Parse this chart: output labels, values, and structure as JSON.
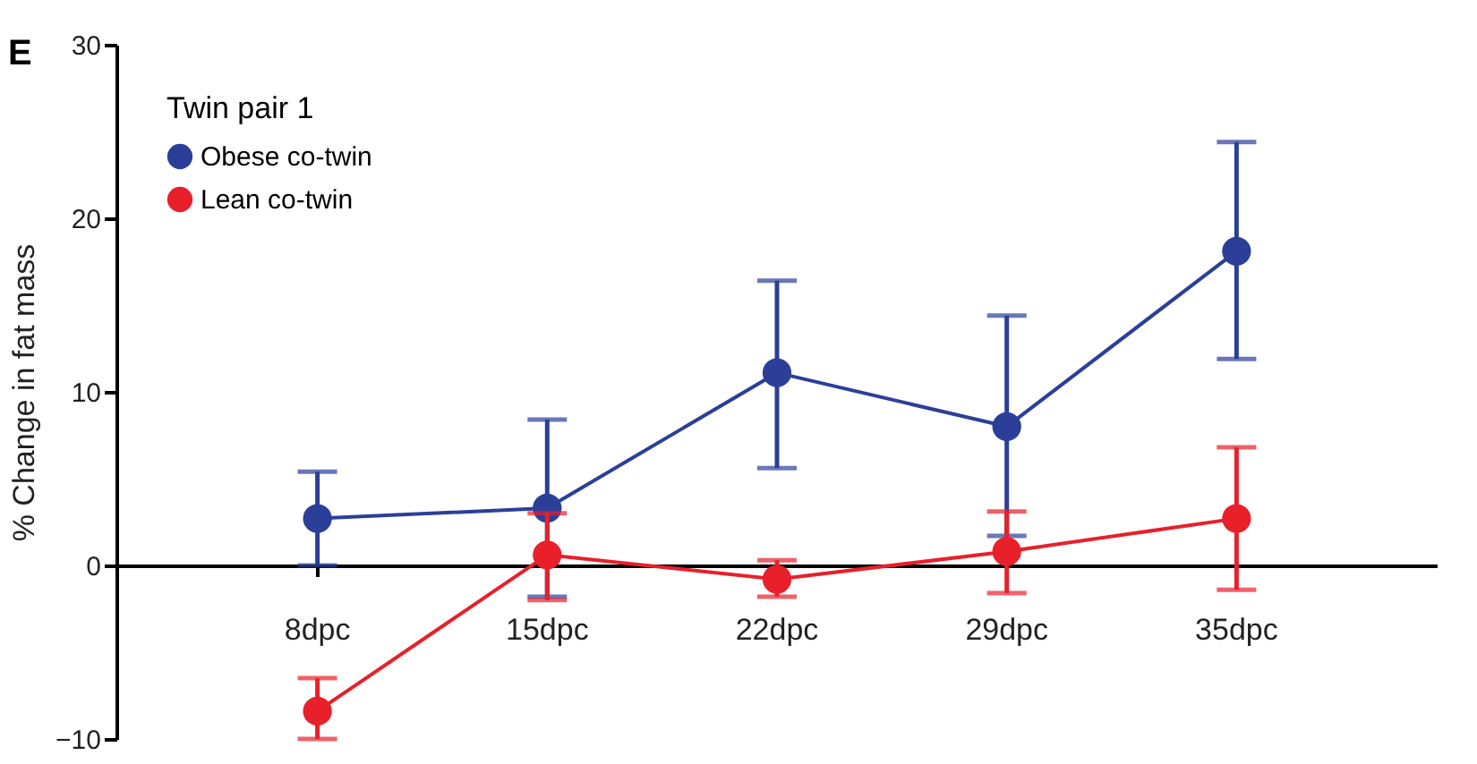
{
  "chart_data": {
    "type": "line",
    "title": "E",
    "ylabel": "% Change in fat mass",
    "legend_title": "Twin pair 1",
    "categories": [
      "8dpc",
      "15dpc",
      "22dpc",
      "29dpc",
      "35dpc"
    ],
    "series": [
      {
        "name": "Obese co-twin",
        "color": "#2b3f99",
        "values": [
          2.7,
          3.3,
          11.1,
          8.0,
          18.1
        ],
        "errors": [
          [
            0,
            5.4
          ],
          [
            -1.8,
            8.4
          ],
          [
            5.6,
            16.4
          ],
          [
            1.7,
            14.4
          ],
          [
            11.9,
            24.4
          ]
        ]
      },
      {
        "name": "Lean co-twin",
        "color": "#e8202a",
        "values": [
          -8.4,
          0.6,
          -0.8,
          0.8,
          2.7
        ],
        "errors": [
          [
            -10.0,
            -6.5
          ],
          [
            -2.0,
            3.0
          ],
          [
            -1.8,
            0.3
          ],
          [
            -1.6,
            3.1
          ],
          [
            -1.4,
            6.8
          ]
        ]
      }
    ],
    "ylim": [
      -10,
      30
    ],
    "yticks": [
      -10,
      0,
      10,
      20,
      30
    ],
    "grid": false,
    "legend": "top left",
    "marker": "circle"
  }
}
